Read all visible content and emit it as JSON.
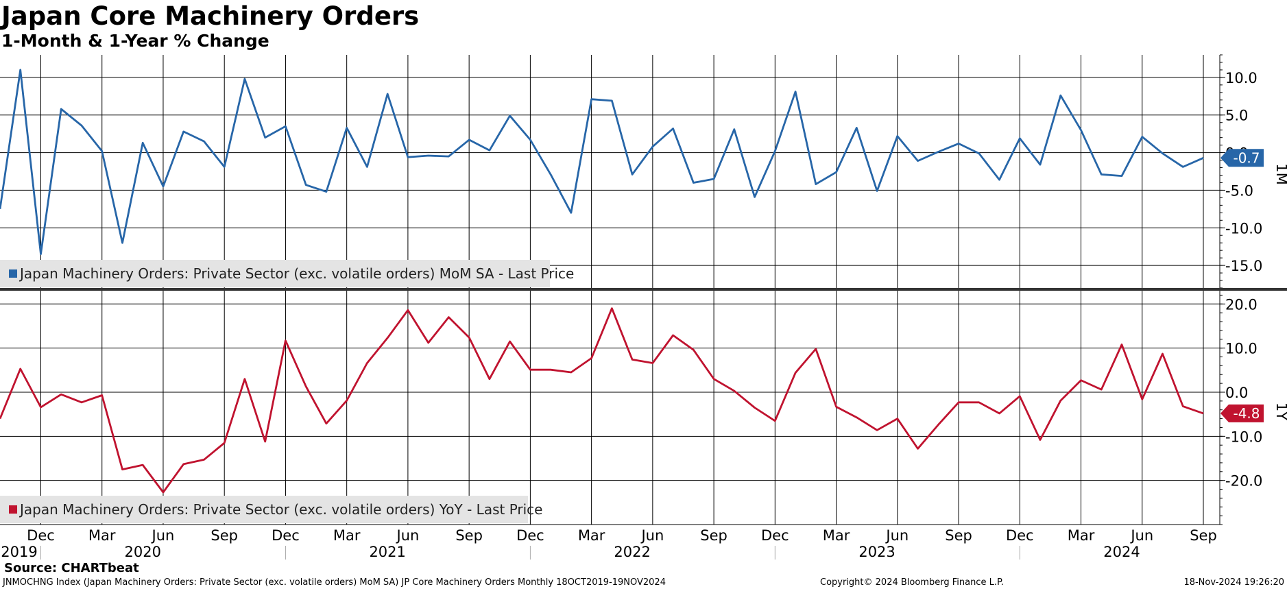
{
  "title": "Japan Core Machinery Orders",
  "subtitle": "1-Month & 1-Year % Change",
  "source": "Source: CHARTbeat",
  "footer": {
    "left": "JNMOCHNG Index (Japan Machinery Orders: Private Sector (exc. volatile orders) MoM SA) JP Core Machinery Orders  Monthly 18OCT2019-19NOV2024",
    "copyright": "Copyright© 2024 Bloomberg Finance L.P.",
    "timestamp": "18-Nov-2024 19:26:20"
  },
  "colors": {
    "mom": "#2766a8",
    "yoy": "#c0132f",
    "grid": "#000000"
  },
  "chart_data": [
    {
      "type": "line",
      "panel": "top",
      "side_label": "1M",
      "legend": "Japan Machinery Orders: Private Sector (exc. volatile orders) MoM SA - Last Price",
      "last_value_label": "-0.7",
      "ylim": [
        -18,
        13
      ],
      "yticks": [
        10,
        5,
        0,
        -5,
        -10,
        -15
      ],
      "ytick_labels": [
        "10.0",
        "5.0",
        "0.0",
        "-5.0",
        "-10.0",
        "-15.0"
      ],
      "series": [
        {
          "name": "MoM",
          "values": [
            -7.5,
            11.0,
            -13.5,
            5.8,
            3.6,
            0.2,
            -12.0,
            1.3,
            -4.5,
            2.8,
            1.5,
            -1.9,
            9.8,
            2.0,
            3.5,
            -4.3,
            -5.2,
            3.3,
            -1.9,
            7.8,
            -0.6,
            -0.4,
            -0.5,
            1.7,
            0.3,
            4.9,
            1.7,
            -2.9,
            -8.0,
            7.1,
            6.9,
            -2.9,
            0.8,
            3.2,
            -4.0,
            -3.5,
            3.1,
            -5.9,
            0.2,
            8.1,
            -4.2,
            -2.6,
            3.3,
            -5.1,
            2.2,
            -1.1,
            0.1,
            1.2,
            -0.1,
            -3.6,
            1.9,
            -1.6,
            7.6,
            3.0,
            -2.9,
            -3.1,
            2.1,
            -0.1,
            -1.9,
            -0.7
          ]
        }
      ]
    },
    {
      "type": "line",
      "panel": "bottom",
      "side_label": "1Y",
      "legend": "Japan Machinery Orders: Private Sector (exc. volatile orders) YoY - Last Price",
      "last_value_label": "-4.8",
      "ylim": [
        -30,
        23
      ],
      "yticks": [
        20,
        10,
        0,
        -10,
        -20
      ],
      "ytick_labels": [
        "20.0",
        "10.0",
        "0.0",
        "-10.0",
        "-20.0"
      ],
      "series": [
        {
          "name": "YoY",
          "values": [
            -6.0,
            5.3,
            -3.4,
            -0.5,
            -2.3,
            -0.7,
            -17.5,
            -16.5,
            -22.7,
            -16.3,
            -15.3,
            -11.5,
            3.0,
            -11.2,
            11.7,
            1.3,
            -7.1,
            -1.9,
            6.6,
            12.3,
            18.6,
            11.2,
            17.0,
            12.4,
            3.0,
            11.5,
            5.1,
            5.1,
            4.5,
            7.7,
            19.0,
            7.4,
            6.6,
            12.9,
            9.6,
            3.0,
            0.3,
            -3.5,
            -6.5,
            4.4,
            9.8,
            -3.3,
            -5.7,
            -8.6,
            -6.0,
            -12.8,
            -7.4,
            -2.3,
            -2.3,
            -4.8,
            -0.9,
            -10.8,
            -1.9,
            2.7,
            0.6,
            10.8,
            -1.6,
            8.7,
            -3.2,
            -4.8
          ]
        }
      ]
    }
  ],
  "x_axis": {
    "months": [
      "Dec",
      "Mar",
      "Jun",
      "Sep",
      "Dec",
      "Mar",
      "Jun",
      "Sep",
      "Dec",
      "Mar",
      "Jun",
      "Sep",
      "Dec",
      "Mar",
      "Jun",
      "Sep",
      "Dec",
      "Mar",
      "Jun",
      "Sep"
    ],
    "years": [
      "2019",
      "2020",
      "2021",
      "2022",
      "2023",
      "2024"
    ]
  }
}
